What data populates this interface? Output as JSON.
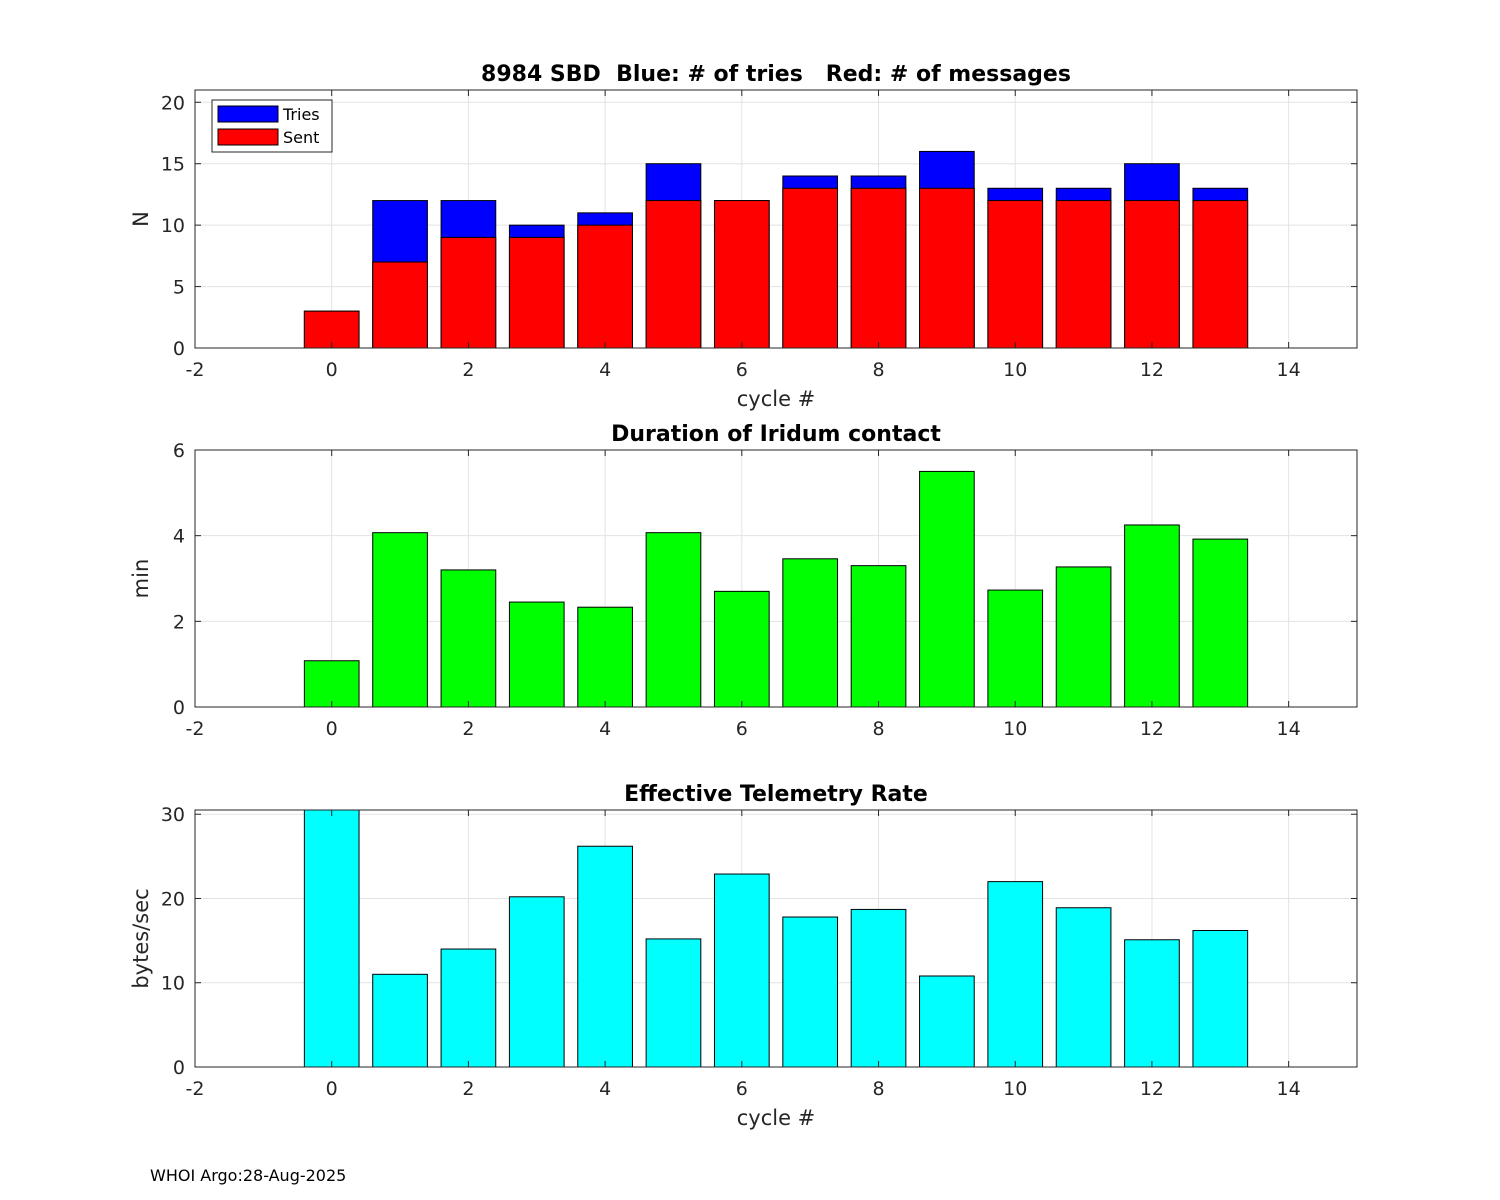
{
  "footer": "WHOI Argo:28-Aug-2025",
  "chart_data": [
    {
      "type": "bar",
      "title": "8984 SBD  Blue: # of tries   Red: # of messages",
      "xlabel": "cycle #",
      "ylabel": "N",
      "xlim": [
        -2,
        15
      ],
      "ylim": [
        0,
        21
      ],
      "xticks": [
        -2,
        0,
        2,
        4,
        6,
        8,
        10,
        12,
        14
      ],
      "yticks": [
        0,
        5,
        10,
        15,
        20
      ],
      "grid": true,
      "legend_position": "top-left",
      "x": [
        0,
        1,
        2,
        3,
        4,
        5,
        6,
        7,
        8,
        9,
        10,
        11,
        12,
        13
      ],
      "series": [
        {
          "name": "Tries",
          "color": "#0000ff",
          "values": [
            3,
            12,
            12,
            10,
            11,
            15,
            12,
            14,
            14,
            16,
            13,
            13,
            15,
            13
          ]
        },
        {
          "name": "Sent",
          "color": "#ff0000",
          "values": [
            3,
            7,
            9,
            9,
            10,
            12,
            12,
            13,
            13,
            13,
            12,
            12,
            12,
            12
          ]
        }
      ]
    },
    {
      "type": "bar",
      "title": "Duration of Iridum contact",
      "xlabel": "",
      "ylabel": "min",
      "xlim": [
        -2,
        15
      ],
      "ylim": [
        0,
        6
      ],
      "xticks": [
        -2,
        0,
        2,
        4,
        6,
        8,
        10,
        12,
        14
      ],
      "yticks": [
        0,
        2,
        4,
        6
      ],
      "grid": true,
      "x": [
        0,
        1,
        2,
        3,
        4,
        5,
        6,
        7,
        8,
        9,
        10,
        11,
        12,
        13
      ],
      "series": [
        {
          "color": "#00ff00",
          "values": [
            1.08,
            4.07,
            3.2,
            2.45,
            2.33,
            4.07,
            2.7,
            3.46,
            3.3,
            5.5,
            2.73,
            3.27,
            4.25,
            3.92
          ]
        }
      ]
    },
    {
      "type": "bar",
      "title": "Effective Telemetry Rate",
      "xlabel": "cycle #",
      "ylabel": "bytes/sec",
      "xlim": [
        -2,
        15
      ],
      "ylim": [
        0,
        30.5
      ],
      "xticks": [
        -2,
        0,
        2,
        4,
        6,
        8,
        10,
        12,
        14
      ],
      "yticks": [
        0,
        10,
        20,
        30
      ],
      "grid": true,
      "x": [
        0,
        1,
        2,
        3,
        4,
        5,
        6,
        7,
        8,
        9,
        10,
        11,
        12,
        13
      ],
      "series": [
        {
          "color": "#00ffff",
          "values": [
            31,
            11,
            14,
            20.2,
            26.2,
            15.2,
            22.9,
            17.8,
            18.7,
            10.8,
            22,
            18.9,
            15.1,
            16.2
          ]
        }
      ]
    }
  ]
}
